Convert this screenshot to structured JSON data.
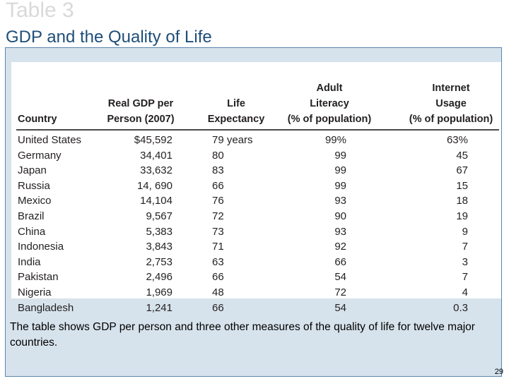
{
  "slide": {
    "label": "Table 3",
    "title": "GDP and the Quality of Life",
    "caption": "The table shows GDP per person and three other measures of the quality of life for twelve major countries.",
    "page_number": "29"
  },
  "table": {
    "headers": [
      {
        "lines": [
          "Country"
        ]
      },
      {
        "lines": [
          "Real GDP per",
          "Person (2007)"
        ]
      },
      {
        "lines": [
          "Life",
          "Expectancy"
        ]
      },
      {
        "lines": [
          "Adult",
          "Literacy",
          "(% of population)"
        ]
      },
      {
        "lines": [
          "Internet",
          "Usage",
          "(% of population)"
        ]
      }
    ],
    "rows": [
      {
        "country": "United States",
        "gdp": "$45,592",
        "life": "79 years",
        "literacy": "99%",
        "internet": "63%"
      },
      {
        "country": "Germany",
        "gdp": "34,401",
        "life": "80",
        "literacy": "99",
        "internet": "45"
      },
      {
        "country": "Japan",
        "gdp": "33,632",
        "life": "83",
        "literacy": "99",
        "internet": "67"
      },
      {
        "country": "Russia",
        "gdp": "14, 690",
        "life": "66",
        "literacy": "99",
        "internet": "15"
      },
      {
        "country": "Mexico",
        "gdp": "14,104",
        "life": "76",
        "literacy": "93",
        "internet": "18"
      },
      {
        "country": "Brazil",
        "gdp": "9,567",
        "life": "72",
        "literacy": "90",
        "internet": "19"
      },
      {
        "country": "China",
        "gdp": "5,383",
        "life": "73",
        "literacy": "93",
        "internet": "9"
      },
      {
        "country": "Indonesia",
        "gdp": "3,843",
        "life": "71",
        "literacy": "92",
        "internet": "7"
      },
      {
        "country": "India",
        "gdp": "2,753",
        "life": "63",
        "literacy": "66",
        "internet": "3"
      },
      {
        "country": "Pakistan",
        "gdp": "2,496",
        "life": "66",
        "literacy": "54",
        "internet": "7"
      },
      {
        "country": "Nigeria",
        "gdp": "1,969",
        "life": "48",
        "literacy": "72",
        "internet": "4"
      },
      {
        "country": "Bangladesh",
        "gdp": "1,241",
        "life": "66",
        "literacy": "54",
        "internet": "0.3"
      }
    ]
  }
}
